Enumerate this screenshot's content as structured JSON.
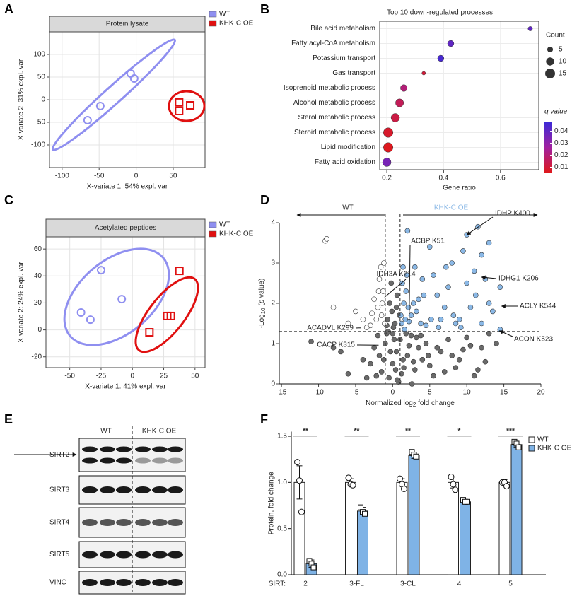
{
  "panels": [
    "A",
    "B",
    "C",
    "D",
    "E",
    "F"
  ],
  "chart_data": [
    {
      "type": "pca",
      "title": "Protein lysate",
      "xlabel": "X-variate 1: 54% expl. var",
      "ylabel": "X-variate 2: 31% expl. var",
      "xlim": [
        -117,
        93
      ],
      "ylim": [
        -150,
        150
      ],
      "xticks": [
        -100,
        -50,
        0,
        50
      ],
      "yticks": [
        -100,
        -50,
        0,
        50,
        100
      ],
      "grid": true,
      "series": [
        {
          "name": "WT",
          "color": "#8f8ff0",
          "marker": "circle",
          "x": [
            -65.6,
            -48.4,
            -7.4,
            -2.6
          ],
          "values": [
            -45.3,
            -14,
            57.8,
            46.9
          ]
        },
        {
          "name": "KHK-C OE",
          "color": "#e01010",
          "marker": "square",
          "x": [
            58,
            58,
            73
          ],
          "values": [
            -6,
            -25,
            -12.5
          ]
        }
      ]
    },
    {
      "type": "dot",
      "title": "Top 10 down-regulated processes",
      "xlabel": "Gene ratio",
      "categories": [
        "Bile acid metabolism",
        "Fatty acyl-CoA metabolism",
        "Potassium transport",
        "Gas transport",
        "Isoprenoid metabolic process",
        "Alcohol metabolic process",
        "Sterol metabolic process",
        "Steroid metabolic process",
        "Lipid modification",
        "Fatty acid oxidation"
      ],
      "values": [
        0.705,
        0.425,
        0.39,
        0.33,
        0.26,
        0.245,
        0.23,
        0.205,
        0.205,
        0.2
      ],
      "sizes": [
        3,
        6,
        6,
        2,
        7,
        10,
        11,
        14,
        14,
        11
      ],
      "qvalues": [
        0.04,
        0.04,
        0.045,
        0.01,
        0.02,
        0.015,
        0.012,
        0.008,
        0.006,
        0.035
      ],
      "xlim": [
        0.175,
        0.735
      ],
      "xticks": [
        0.2,
        0.4,
        0.6
      ],
      "grid": true,
      "size_legend": {
        "title": "Count",
        "values": [
          5,
          10,
          15
        ]
      },
      "color_legend": {
        "title": "q value",
        "lim": [
          0.005,
          0.048
        ],
        "ticks": [
          0.01,
          0.02,
          0.03,
          0.04
        ],
        "low": "#e01818",
        "mid": "#a020a0",
        "high": "#3a2ad8"
      }
    },
    {
      "type": "pca",
      "title": "Acetylated peptides",
      "xlabel": "X-variate 1: 41% expl. var",
      "ylabel": "X-variate 2: 24% expl. var",
      "xlim": [
        -69,
        58
      ],
      "ylim": [
        -28,
        69
      ],
      "xticks": [
        -50,
        -25,
        0,
        25,
        50
      ],
      "yticks": [
        -20,
        0,
        20,
        40,
        60
      ],
      "grid": true,
      "series": [
        {
          "name": "WT",
          "color": "#8f8ff0",
          "marker": "circle",
          "x": [
            -25,
            -8.5,
            -41,
            -33.5
          ],
          "values": [
            44.3,
            22.8,
            12.9,
            7.6
          ]
        },
        {
          "name": "KHK-C OE",
          "color": "#e01010",
          "marker": "square",
          "x": [
            37.5,
            27.8,
            30.7,
            13.6
          ],
          "values": [
            43.8,
            10.3,
            10.3,
            -1.8
          ]
        }
      ]
    },
    {
      "type": "volcano",
      "xlabel": [
        "Normalized log",
        "2",
        " fold change"
      ],
      "ylabel": [
        "-Log",
        "10",
        " (",
        "p",
        " value)"
      ],
      "xlim": [
        -15.3,
        20
      ],
      "ylim": [
        0,
        4
      ],
      "xticks": [
        -15,
        -10,
        -5,
        0,
        5,
        10,
        15,
        20
      ],
      "yticks": [
        0,
        1,
        2,
        3,
        4
      ],
      "hlines": [
        1.3
      ],
      "vlines": [
        -1,
        1
      ],
      "series": [
        {
          "color": "#6a6a6a",
          "x": [
            -11,
            -7,
            -4,
            -3,
            -2.5,
            -2,
            -1.5,
            -1,
            -0.5,
            0,
            0.5,
            1,
            1.5,
            2,
            2.5,
            3,
            3.5,
            4,
            5,
            6,
            7,
            8,
            9,
            10,
            11,
            12,
            13,
            14,
            -1.8,
            -0.8,
            0.2,
            1.2,
            2.2,
            3.2,
            -2.2,
            -1.2,
            0.8,
            1.8,
            2.8,
            4.5,
            6.5,
            8.5,
            10.5,
            12.5,
            -0.3,
            0.4,
            1.4,
            0.0,
            -0.6,
            0.6,
            -6,
            -3.5,
            5.5,
            7.5,
            9.5,
            11.5,
            -8,
            3.8,
            4.8,
            2.6,
            -0.7,
            -0.4,
            -0.1,
            0.3,
            0.6,
            0.9,
            -0.2,
            0.1,
            0.5,
            -0.8
          ],
          "values": [
            1.05,
            0.8,
            0.6,
            0.5,
            0.9,
            1.2,
            0.3,
            1.0,
            0.15,
            0.5,
            0.8,
            1.1,
            0.4,
            0.7,
            1.2,
            0.35,
            0.9,
            0.6,
            0.45,
            0.9,
            0.3,
            0.7,
            0.6,
            1.15,
            0.2,
            0.9,
            1.25,
            1.0,
            0.7,
            1.25,
            1.1,
            0.25,
            0.95,
            1.15,
            0.2,
            0.6,
            0.05,
            1.25,
            0.55,
            1.0,
            0.8,
            0.4,
            0.95,
            0.55,
            0.8,
            0.35,
            0.6,
            1.25,
            1.3,
            0.1,
            0.25,
            0.15,
            0.2,
            1.1,
            0.85,
            0.35,
            0.9,
            1.2,
            0.7,
            0.0,
            1.6,
            2.0,
            1.8,
            1.5,
            2.2,
            1.7,
            2.5,
            1.4,
            1.9,
            1.45
          ]
        },
        {
          "name": "WT",
          "color": "#ffffff",
          "x": [
            -9.1,
            -8.9,
            -8,
            -6,
            -5,
            -4,
            -3,
            -2.5,
            -2,
            -1.8,
            -1.5,
            -1.3,
            -1.2,
            -1.1,
            -1.6,
            -2.2,
            -3.5,
            -1.4,
            -1.9,
            -2.8
          ],
          "values": [
            3.55,
            3.6,
            1.9,
            1.5,
            1.8,
            1.6,
            1.45,
            2.1,
            1.9,
            2.6,
            1.7,
            2.3,
            3.0,
            1.5,
            2.9,
            1.6,
            1.4,
            2.0,
            2.3,
            1.75
          ]
        },
        {
          "name": "KHK-C OE",
          "color": "#8ab8e6",
          "x": [
            10,
            12,
            14.5,
            14.5,
            1.5,
            2,
            3,
            4,
            5,
            6,
            7,
            8,
            9,
            10,
            11,
            12,
            13,
            1.2,
            1.8,
            2.5,
            3.5,
            4.5,
            5.5,
            6.5,
            7.5,
            8.5,
            9.5,
            10.5,
            11.5,
            12.5,
            13.5,
            1.1,
            1.4,
            2.2,
            3.2,
            4.2,
            6.2,
            8.2,
            1.3,
            1.6,
            2.8,
            5.2,
            7.2,
            9.2,
            11.2,
            13,
            2.1,
            3.8,
            1.7,
            1.9
          ],
          "values": [
            3.7,
            3.2,
            2.4,
            1.35,
            2.0,
            3.8,
            2.9,
            2.6,
            3.4,
            2.2,
            1.9,
            3.0,
            1.6,
            2.5,
            2.8,
            1.5,
            2.0,
            1.5,
            2.3,
            1.7,
            2.1,
            1.45,
            2.7,
            1.6,
            2.4,
            1.5,
            3.3,
            1.9,
            3.9,
            2.6,
            1.8,
            1.7,
            2.9,
            1.55,
            1.8,
            2.2,
            1.4,
            1.7,
            2.5,
            1.35,
            2.0,
            1.6,
            2.9,
            1.4,
            2.2,
            3.5,
            1.9,
            1.5,
            1.6,
            2.7
          ]
        }
      ],
      "annotations": [
        {
          "text": "IDHP K400",
          "x": 10,
          "y": 3.7
        },
        {
          "text": "ACBP K51",
          "x": 2.2,
          "y": 1.3
        },
        {
          "text": "IDHG1 K206",
          "x": 12,
          "y": 2.65
        },
        {
          "text": "IDH3A K214",
          "x": -1.1,
          "y": 2.15
        },
        {
          "text": "ACLY K544",
          "x": 14.7,
          "y": 1.93
        },
        {
          "text": "ACADVL K299",
          "x": -4.3,
          "y": 1.39
        },
        {
          "text": "ACON K523",
          "x": 14.4,
          "y": 1.32
        },
        {
          "text": "CACP K315",
          "x": -1.9,
          "y": 0.96
        }
      ]
    },
    {
      "type": "bar",
      "ylabel": "Protein, fold change",
      "category_prefix": "SIRT:",
      "categories": [
        "2",
        "3-FL",
        "3-CL",
        "4",
        "5"
      ],
      "ylim": [
        0,
        1.55
      ],
      "yticks": [
        {
          "value": 0,
          "label": "0.0"
        },
        0.5,
        {
          "value": 1,
          "label": "1.0"
        },
        1.5
      ],
      "significance": [
        "**",
        "**",
        "**",
        "*",
        "***"
      ],
      "series": [
        {
          "name": "WT",
          "color": "#ffffff",
          "values": [
            1.0,
            1.0,
            1.0,
            1.0,
            1.0
          ],
          "errors": [
            0.18,
            0.04,
            0.04,
            0.06,
            0.03
          ],
          "points": [
            [
              1.22,
              1.02,
              0.68
            ],
            [
              1.05,
              0.98,
              0.97
            ],
            [
              1.04,
              0.98,
              0.93
            ],
            [
              1.06,
              0.98,
              0.92
            ],
            [
              1.0,
              1.0,
              0.96
            ]
          ]
        },
        {
          "name": "KHK-C OE",
          "color": "#7fb3e6",
          "values": [
            0.12,
            0.69,
            1.29,
            0.79,
            1.41
          ],
          "errors": [
            0.04,
            0.04,
            0.03,
            0.02,
            0.03
          ],
          "points": [
            [
              0.15,
              0.12,
              0.08
            ],
            [
              0.73,
              0.68,
              0.66
            ],
            [
              1.33,
              1.3,
              1.28
            ],
            [
              0.81,
              0.79,
              0.79
            ],
            [
              1.44,
              1.42,
              1.38
            ]
          ]
        }
      ]
    }
  ],
  "blot": {
    "columns": [
      "WT",
      "KHK-C OE"
    ],
    "rows": [
      "SIRT2",
      "SIRT3",
      "SIRT4",
      "SIRT5",
      "VINC"
    ]
  }
}
